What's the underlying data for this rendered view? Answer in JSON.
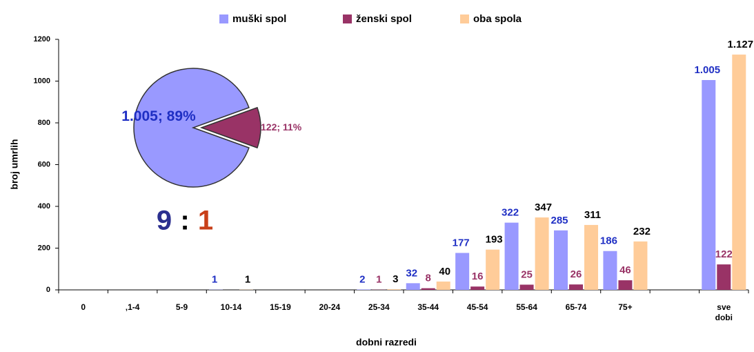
{
  "chart_data": [
    {
      "type": "bar",
      "legend": "top",
      "grid": false,
      "x_label": "dobni razredi",
      "y_label": "broj umrlih",
      "categories": [
        "0",
        "‚1-4",
        "5-9",
        "10-14",
        "15-19",
        "20-24",
        "25-34",
        "35-44",
        "45-54",
        "55-64",
        "65-74",
        "75+",
        null,
        "sve dobi"
      ],
      "ylim": [
        0,
        1200
      ],
      "yticks": [
        0,
        200,
        400,
        600,
        800,
        1000,
        1200
      ],
      "series": [
        {
          "name": "muški spol",
          "color": "#9999ff",
          "label_color": "#1f2fc4",
          "values": [
            null,
            null,
            null,
            1,
            null,
            null,
            2,
            32,
            177,
            322,
            285,
            186,
            null,
            1005
          ],
          "value_labels": [
            null,
            null,
            null,
            "1",
            null,
            null,
            "2",
            "32",
            "177",
            "322",
            "285",
            "186",
            null,
            "1.005"
          ]
        },
        {
          "name": "ženski spol",
          "color": "#993366",
          "label_color": "#993366",
          "values": [
            null,
            null,
            null,
            null,
            null,
            null,
            1,
            8,
            16,
            25,
            26,
            46,
            null,
            122
          ],
          "value_labels": [
            null,
            null,
            null,
            null,
            null,
            null,
            "1",
            "8",
            "16",
            "25",
            "26",
            "46",
            null,
            "122"
          ]
        },
        {
          "name": "oba spola",
          "color": "#ffcc99",
          "label_color": "#000000",
          "values": [
            null,
            null,
            null,
            1,
            null,
            null,
            3,
            40,
            193,
            347,
            311,
            232,
            null,
            1127
          ],
          "value_labels": [
            null,
            null,
            null,
            "1",
            null,
            null,
            "3",
            "40",
            "193",
            "347",
            "311",
            "232",
            null,
            "1.127"
          ]
        }
      ]
    },
    {
      "type": "pie",
      "categories": [
        "muški spol",
        "ženski spol"
      ],
      "values": [
        89,
        11
      ],
      "value_labels": [
        "1.005; 89%",
        "122; 11%"
      ],
      "colors": [
        "#9999ff",
        "#993366"
      ],
      "label_colors": [
        "#1f2fc4",
        "#993366"
      ],
      "ratio": [
        {
          "text": "9",
          "color": "#2b2f8f"
        },
        {
          "text": ":",
          "color": "#000000"
        },
        {
          "text": "1",
          "color": "#c8401a"
        }
      ]
    }
  ]
}
